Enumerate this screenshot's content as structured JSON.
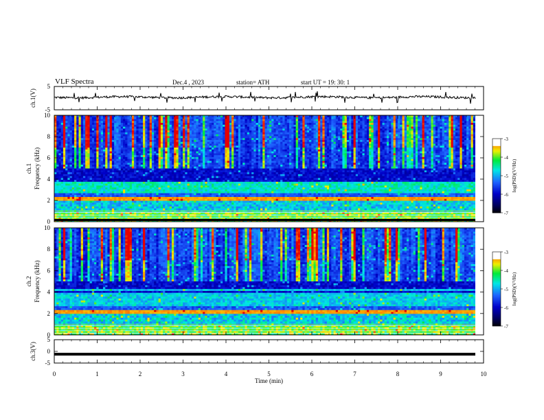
{
  "header": {
    "title": "VLF  Spectra",
    "date": "Dec.4  , 2023",
    "station": "station= ATH",
    "start": "start  UT  =    19: 30: 1"
  },
  "chart_data": [
    {
      "type": "line",
      "ylabel": "ch.1(V)",
      "ylim": [
        -5,
        5
      ],
      "yticks": [
        "5",
        "-5"
      ],
      "xlim": [
        0,
        10
      ],
      "description_values": "noisy trace centred slightly above 0 V",
      "mean": 0.4,
      "amplitude": 1.6
    },
    {
      "type": "heatmap",
      "ylabel": "ch.1\nFrequency  (kHz)",
      "ylim": [
        0,
        10
      ],
      "yticks": [
        "0",
        "2",
        "4",
        "6",
        "8",
        "10"
      ],
      "xlim": [
        0,
        10
      ],
      "colorbar": {
        "label": "log(PSD)(V²/Hz)",
        "ticks": [
          "-3",
          "-4",
          "-5",
          "-6",
          "-7"
        ],
        "range": [
          -7,
          -3
        ]
      }
    },
    {
      "type": "heatmap",
      "ylabel": "ch.2\nFrequency  (kHz)",
      "ylim": [
        0,
        10
      ],
      "yticks": [
        "0",
        "2",
        "4",
        "6",
        "8",
        "10"
      ],
      "xlim": [
        0,
        10
      ],
      "colorbar": {
        "label": "log(PSD)(V²/Hz)",
        "ticks": [
          "-3",
          "-4",
          "-5",
          "-6",
          "-7"
        ],
        "range": [
          -7,
          -3
        ]
      }
    },
    {
      "type": "line",
      "ylabel": "ch.3(V)",
      "ylim": [
        -5,
        5
      ],
      "yticks": [
        "5",
        "0",
        "-5"
      ],
      "xlim": [
        0,
        10
      ],
      "value": -1.2
    }
  ],
  "xaxis": {
    "label": "Time  (min)",
    "ticks": [
      "0",
      "1",
      "2",
      "3",
      "4",
      "5",
      "6",
      "7",
      "8",
      "9",
      "10"
    ]
  },
  "colors": {
    "trace": "#000000",
    "colormap": [
      "#000000",
      "#00008b",
      "#0000ff",
      "#1e90ff",
      "#00ffff",
      "#00ff00",
      "#ffff00",
      "#ff8c00",
      "#ff0000",
      "#ffffff"
    ]
  }
}
